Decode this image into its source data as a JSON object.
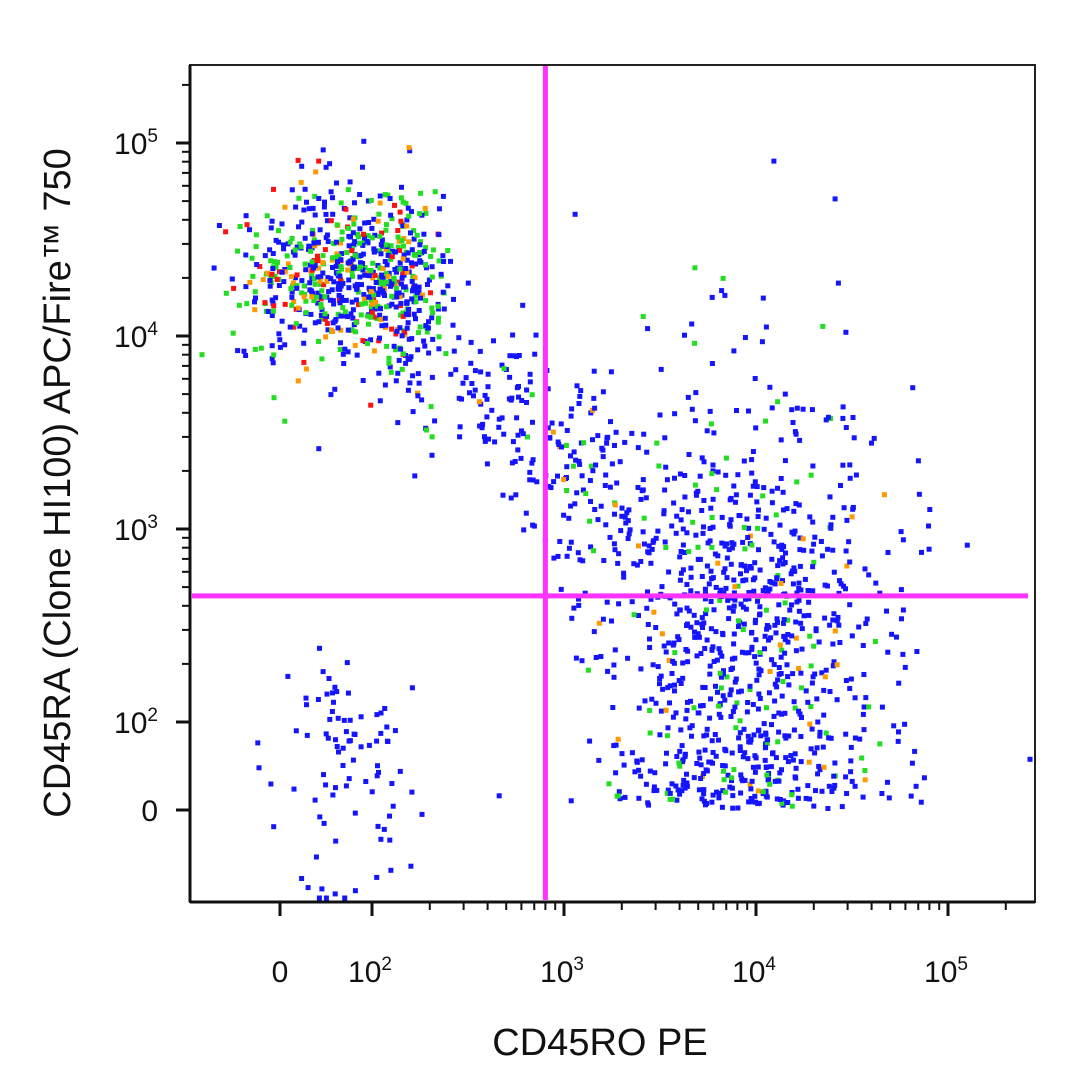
{
  "chart_data": {
    "type": "scatter",
    "xlabel": "CD45RO PE",
    "ylabel": "CD45RA (Clone HI100) APC/Fire™ 750",
    "x_scale": "biexponential",
    "y_scale": "biexponential",
    "xlim": [
      -150,
      260000
    ],
    "ylim": [
      -150,
      260000
    ],
    "x_ticks": [
      {
        "value": 0,
        "base": "0",
        "exp": ""
      },
      {
        "value": 100,
        "base": "10",
        "exp": "2"
      },
      {
        "value": 1000,
        "base": "10",
        "exp": "3"
      },
      {
        "value": 10000,
        "base": "10",
        "exp": "4"
      },
      {
        "value": 100000,
        "base": "10",
        "exp": "5"
      }
    ],
    "y_ticks": [
      {
        "value": 0,
        "base": "0",
        "exp": ""
      },
      {
        "value": 100,
        "base": "10",
        "exp": "2"
      },
      {
        "value": 1000,
        "base": "10",
        "exp": "3"
      },
      {
        "value": 10000,
        "base": "10",
        "exp": "4"
      },
      {
        "value": 100000,
        "base": "10",
        "exp": "5"
      }
    ],
    "quadrant_gates": {
      "x": 800,
      "y": 450,
      "color": "#ff33ff"
    },
    "density_colors": [
      "#1414ff",
      "#22dd22",
      "#ff9900",
      "#ff1111"
    ],
    "populations": [
      {
        "label_printed": "",
        "x_center": 80,
        "y_center": 20000,
        "x_spread_decades": 0.55,
        "y_spread_decades": 0.22,
        "count": 700,
        "density_weights": [
          0.5,
          0.3,
          0.1,
          0.1
        ]
      },
      {
        "label_printed": "",
        "x_center": 900,
        "y_center": 2500,
        "x_spread_decades": 0.55,
        "y_spread_decades": 0.45,
        "count": 320,
        "density_weights": [
          0.92,
          0.06,
          0.02,
          0
        ]
      },
      {
        "label_printed": "",
        "x_center": 9000,
        "y_center": 250,
        "x_spread_decades": 0.38,
        "y_spread_decades": 0.7,
        "count": 950,
        "density_weights": [
          0.86,
          0.1,
          0.04,
          0
        ]
      },
      {
        "label_printed": "",
        "x_center": 80,
        "y_center": 40,
        "x_spread_decades": 0.35,
        "y_spread_decades": 0.7,
        "count": 90,
        "density_weights": [
          1,
          0,
          0,
          0
        ]
      }
    ],
    "grid": false,
    "legend": "none"
  }
}
